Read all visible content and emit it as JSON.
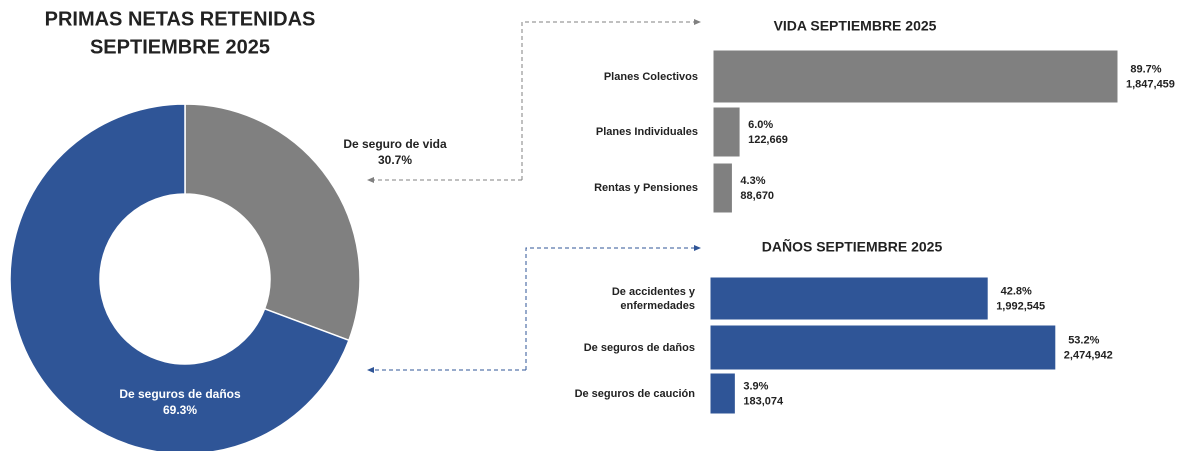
{
  "chart_data": [
    {
      "type": "pie",
      "title": [
        "PRIMAS NETAS RETENIDAS",
        "SEPTIEMBRE 2025"
      ],
      "categories": [
        "De seguro de vida",
        "De seguros de daños"
      ],
      "values": [
        30.7,
        69.3
      ],
      "value_labels": [
        "30.7%",
        "69.3%"
      ],
      "colors": [
        "#808080",
        "#2f5597"
      ]
    },
    {
      "type": "hbar",
      "title": "VIDA SEPTIEMBRE 2025",
      "categories": [
        "Planes Colectivos",
        "Planes Individuales",
        "Rentas y Pensiones"
      ],
      "values": [
        89.7,
        6.0,
        4.3
      ],
      "value_labels": [
        "89.7%",
        "6.0%",
        "4.3%"
      ],
      "amounts": [
        1847459,
        122669,
        88670
      ],
      "amount_labels": [
        "1,847,459",
        "122,669",
        "88,670"
      ],
      "color": "#808080"
    },
    {
      "type": "hbar",
      "title": "DAÑOS SEPTIEMBRE 2025",
      "categories": [
        "De accidentes y enfermedades",
        "De seguros de daños",
        "De seguros de caución"
      ],
      "values": [
        42.8,
        53.2,
        3.9
      ],
      "value_labels": [
        "42.8%",
        "53.2%",
        "3.9%"
      ],
      "amounts": [
        1992545,
        2474942,
        183074
      ],
      "amount_labels": [
        "1,992,545",
        "2,474,942",
        "183,074"
      ],
      "color": "#2f5597"
    }
  ]
}
